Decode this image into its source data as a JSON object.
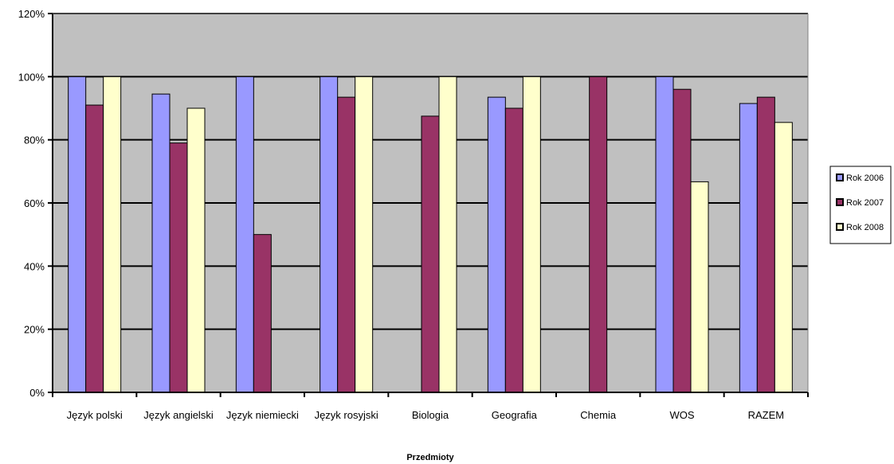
{
  "chart_data": {
    "type": "bar",
    "title": "",
    "xlabel": "Przedmioty",
    "ylabel": "",
    "ylim": [
      0,
      1.2
    ],
    "yticks": [
      0,
      0.2,
      0.4,
      0.6,
      0.8,
      1.0,
      1.2
    ],
    "ytick_labels": [
      "0%",
      "20%",
      "40%",
      "60%",
      "80%",
      "100%",
      "120%"
    ],
    "categories": [
      "Język polski",
      "Język angielski",
      "Język niemiecki",
      "Język rosyjski",
      "Biologia",
      "Geografia",
      "Chemia",
      "WOS",
      "RAZEM"
    ],
    "series": [
      {
        "name": "Rok 2006",
        "color": "#9999ff",
        "values": [
          1.0,
          0.945,
          1.0,
          1.0,
          null,
          0.935,
          null,
          1.0,
          0.915
        ]
      },
      {
        "name": "Rok 2007",
        "color": "#993366",
        "values": [
          0.91,
          0.79,
          0.5,
          0.935,
          0.875,
          0.9,
          1.0,
          0.96,
          0.935
        ]
      },
      {
        "name": "Rok 2008",
        "color": "#ffffcc",
        "values": [
          1.0,
          0.9,
          null,
          1.0,
          1.0,
          1.0,
          null,
          0.667,
          0.855
        ]
      }
    ],
    "plot_background": "#c0c0c0",
    "grid": true,
    "legend_position": "right"
  }
}
